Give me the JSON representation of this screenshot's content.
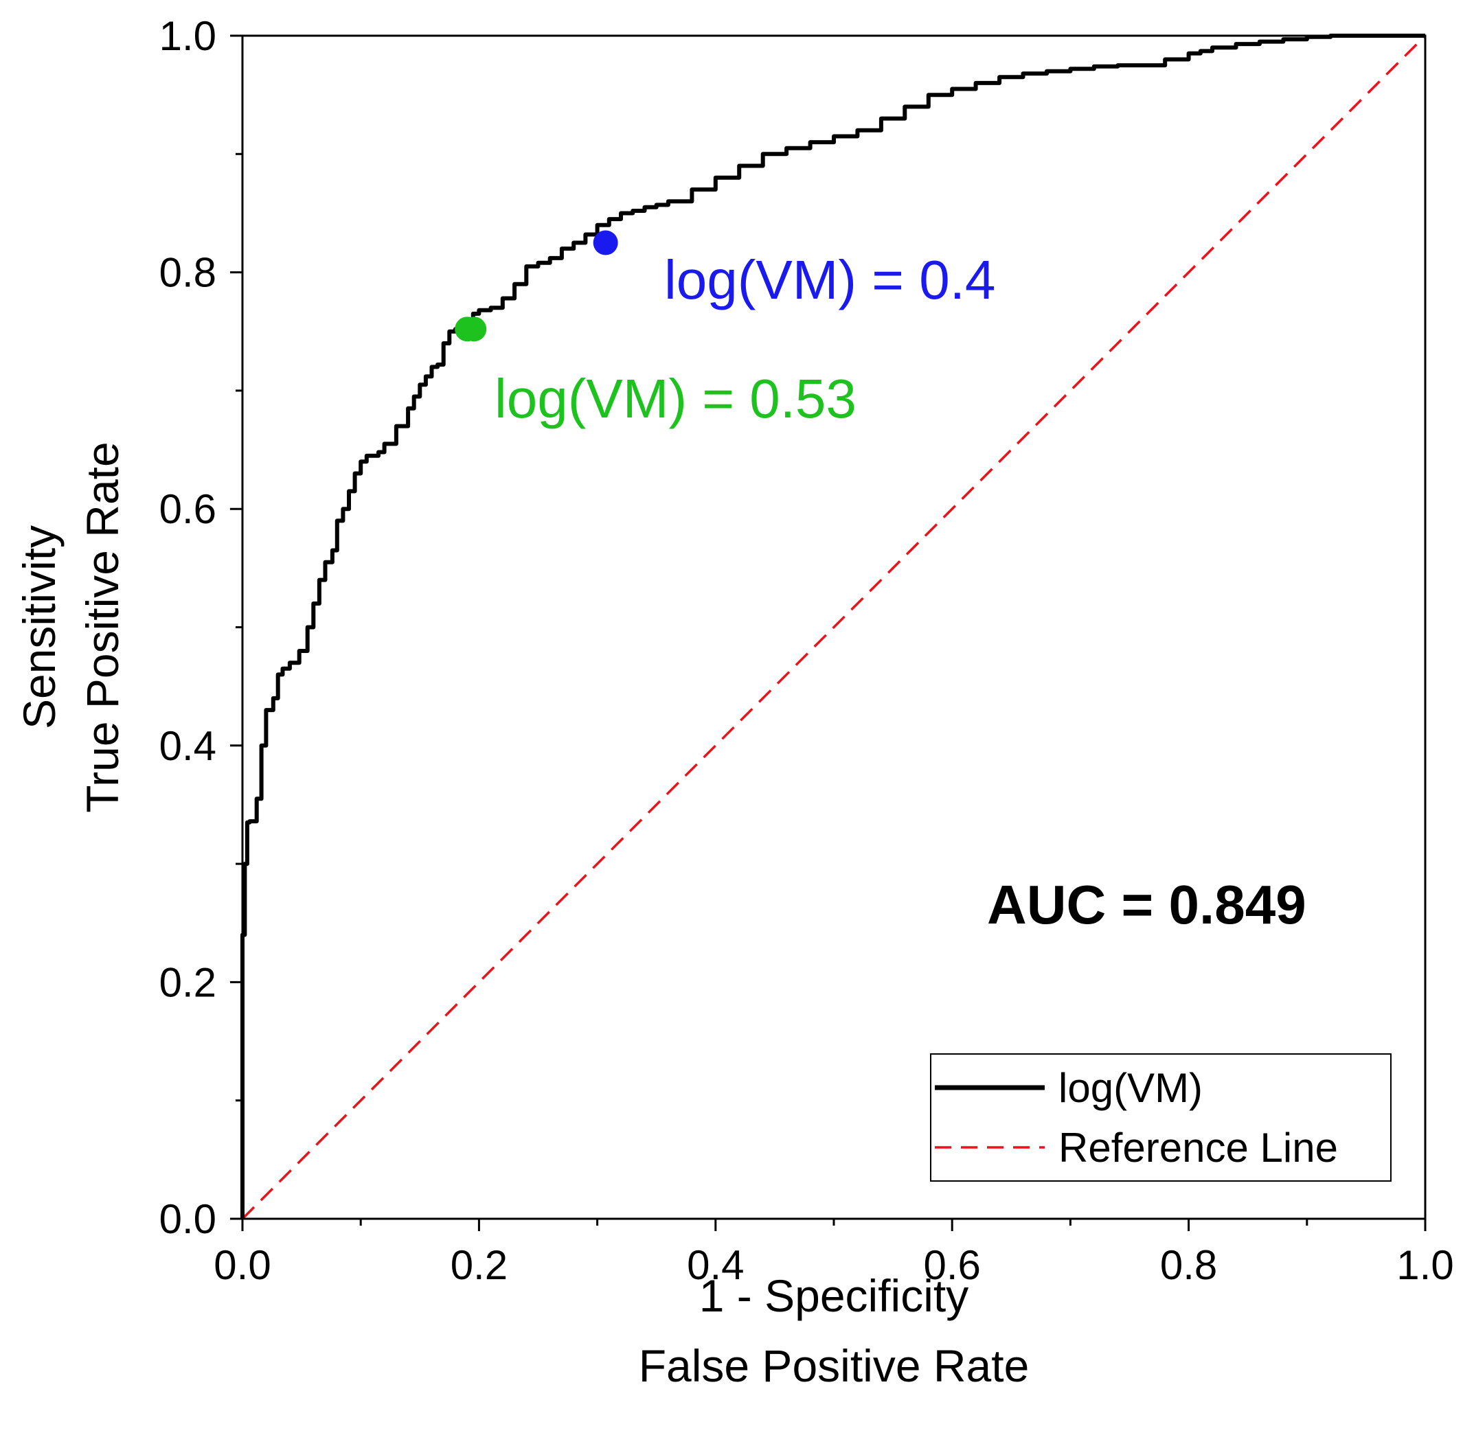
{
  "chart_data": {
    "type": "line",
    "title": "",
    "xlabel_lines": [
      "1 - Specificity",
      "False Positive Rate"
    ],
    "ylabel_lines": [
      "Sensitivity",
      "True Positive Rate"
    ],
    "xlim": [
      0,
      1
    ],
    "ylim": [
      0,
      1
    ],
    "xticks": [
      "0.0",
      "0.2",
      "0.4",
      "0.6",
      "0.8",
      "1.0"
    ],
    "yticks": [
      "0.0",
      "0.2",
      "0.4",
      "0.6",
      "0.8",
      "1.0"
    ],
    "grid": false,
    "legend_position": "bottom-right",
    "series": [
      {
        "name": "log(VM)",
        "color": "#000000",
        "style": "solid",
        "x": [
          0.0,
          0.0,
          0.002,
          0.004,
          0.006,
          0.012,
          0.016,
          0.02,
          0.026,
          0.03,
          0.034,
          0.04,
          0.048,
          0.055,
          0.06,
          0.065,
          0.07,
          0.076,
          0.08,
          0.085,
          0.09,
          0.095,
          0.1,
          0.105,
          0.11,
          0.115,
          0.12,
          0.13,
          0.14,
          0.145,
          0.15,
          0.155,
          0.16,
          0.165,
          0.17,
          0.175,
          0.18,
          0.185,
          0.19,
          0.195,
          0.2,
          0.21,
          0.22,
          0.23,
          0.24,
          0.25,
          0.26,
          0.27,
          0.28,
          0.29,
          0.3,
          0.31,
          0.32,
          0.33,
          0.34,
          0.35,
          0.36,
          0.38,
          0.4,
          0.42,
          0.44,
          0.46,
          0.48,
          0.5,
          0.52,
          0.54,
          0.56,
          0.58,
          0.6,
          0.62,
          0.64,
          0.66,
          0.68,
          0.7,
          0.72,
          0.74,
          0.76,
          0.78,
          0.8,
          0.81,
          0.82,
          0.84,
          0.86,
          0.88,
          0.9,
          0.92,
          0.94,
          0.96,
          0.98,
          1.0
        ],
        "y": [
          0.0,
          0.24,
          0.3,
          0.335,
          0.336,
          0.355,
          0.4,
          0.43,
          0.44,
          0.46,
          0.465,
          0.47,
          0.48,
          0.5,
          0.52,
          0.54,
          0.555,
          0.565,
          0.59,
          0.6,
          0.615,
          0.63,
          0.64,
          0.645,
          0.645,
          0.648,
          0.655,
          0.67,
          0.685,
          0.695,
          0.705,
          0.712,
          0.72,
          0.722,
          0.74,
          0.75,
          0.752,
          0.755,
          0.76,
          0.765,
          0.768,
          0.77,
          0.778,
          0.79,
          0.805,
          0.808,
          0.812,
          0.82,
          0.825,
          0.832,
          0.84,
          0.845,
          0.85,
          0.852,
          0.855,
          0.857,
          0.86,
          0.87,
          0.88,
          0.89,
          0.9,
          0.905,
          0.91,
          0.915,
          0.92,
          0.93,
          0.94,
          0.95,
          0.955,
          0.96,
          0.965,
          0.968,
          0.97,
          0.972,
          0.974,
          0.975,
          0.975,
          0.98,
          0.985,
          0.987,
          0.99,
          0.993,
          0.995,
          0.997,
          0.999,
          1.0,
          1.0,
          1.0,
          1.0,
          1.0
        ]
      },
      {
        "name": "Reference Line",
        "color": "#e8141a",
        "style": "dashed",
        "x": [
          0.0,
          1.0
        ],
        "y": [
          0.0,
          1.0
        ]
      }
    ],
    "markers": [
      {
        "label": "log(VM) = 0.4",
        "x": 0.307,
        "y": 0.825,
        "color": "#1a1aee"
      },
      {
        "label": "log(VM) = 0.53",
        "x": 0.19,
        "y": 0.752,
        "color": "#1ec21e"
      }
    ],
    "annotation_auc": "AUC = 0.849"
  }
}
